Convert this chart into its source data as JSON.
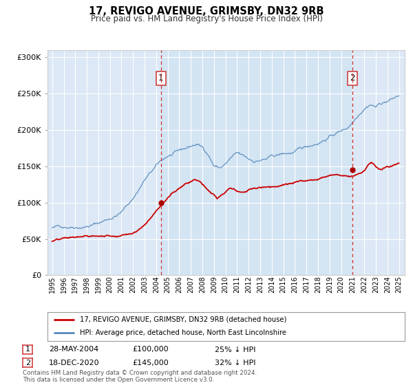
{
  "title": "17, REVIGO AVENUE, GRIMSBY, DN32 9RB",
  "subtitle": "Price paid vs. HM Land Registry's House Price Index (HPI)",
  "title_fontsize": 10.5,
  "subtitle_fontsize": 8.5,
  "background_color": "#dce8f5",
  "fig_background": "#ffffff",
  "red_line_color": "#cc0000",
  "blue_line_color": "#5588bb",
  "marker_color": "#aa0000",
  "annotation_box_color": "#cc3333",
  "vline_color": "#cc3333",
  "grid_color": "#ffffff",
  "ylim": [
    0,
    310000
  ],
  "yticks": [
    0,
    50000,
    100000,
    150000,
    200000,
    250000,
    300000
  ],
  "ytick_labels": [
    "£0",
    "£50K",
    "£100K",
    "£150K",
    "£200K",
    "£250K",
    "£300K"
  ],
  "xlabel_years": [
    "1995",
    "1996",
    "1997",
    "1998",
    "1999",
    "2000",
    "2001",
    "2002",
    "2003",
    "2004",
    "2005",
    "2006",
    "2007",
    "2008",
    "2009",
    "2010",
    "2011",
    "2012",
    "2013",
    "2014",
    "2015",
    "2016",
    "2017",
    "2018",
    "2019",
    "2020",
    "2021",
    "2022",
    "2023",
    "2024",
    "2025"
  ],
  "sale1_year": 2004.41,
  "sale1_price": 100000,
  "sale2_year": 2020.96,
  "sale2_price": 145000,
  "legend_line1": "17, REVIGO AVENUE, GRIMSBY, DN32 9RB (detached house)",
  "legend_line2": "HPI: Average price, detached house, North East Lincolnshire",
  "info1_date": "28-MAY-2004",
  "info1_price": "£100,000",
  "info1_hpi": "25% ↓ HPI",
  "info2_date": "18-DEC-2020",
  "info2_price": "£145,000",
  "info2_hpi": "32% ↓ HPI",
  "footer": "Contains HM Land Registry data © Crown copyright and database right 2024.\nThis data is licensed under the Open Government Licence v3.0."
}
